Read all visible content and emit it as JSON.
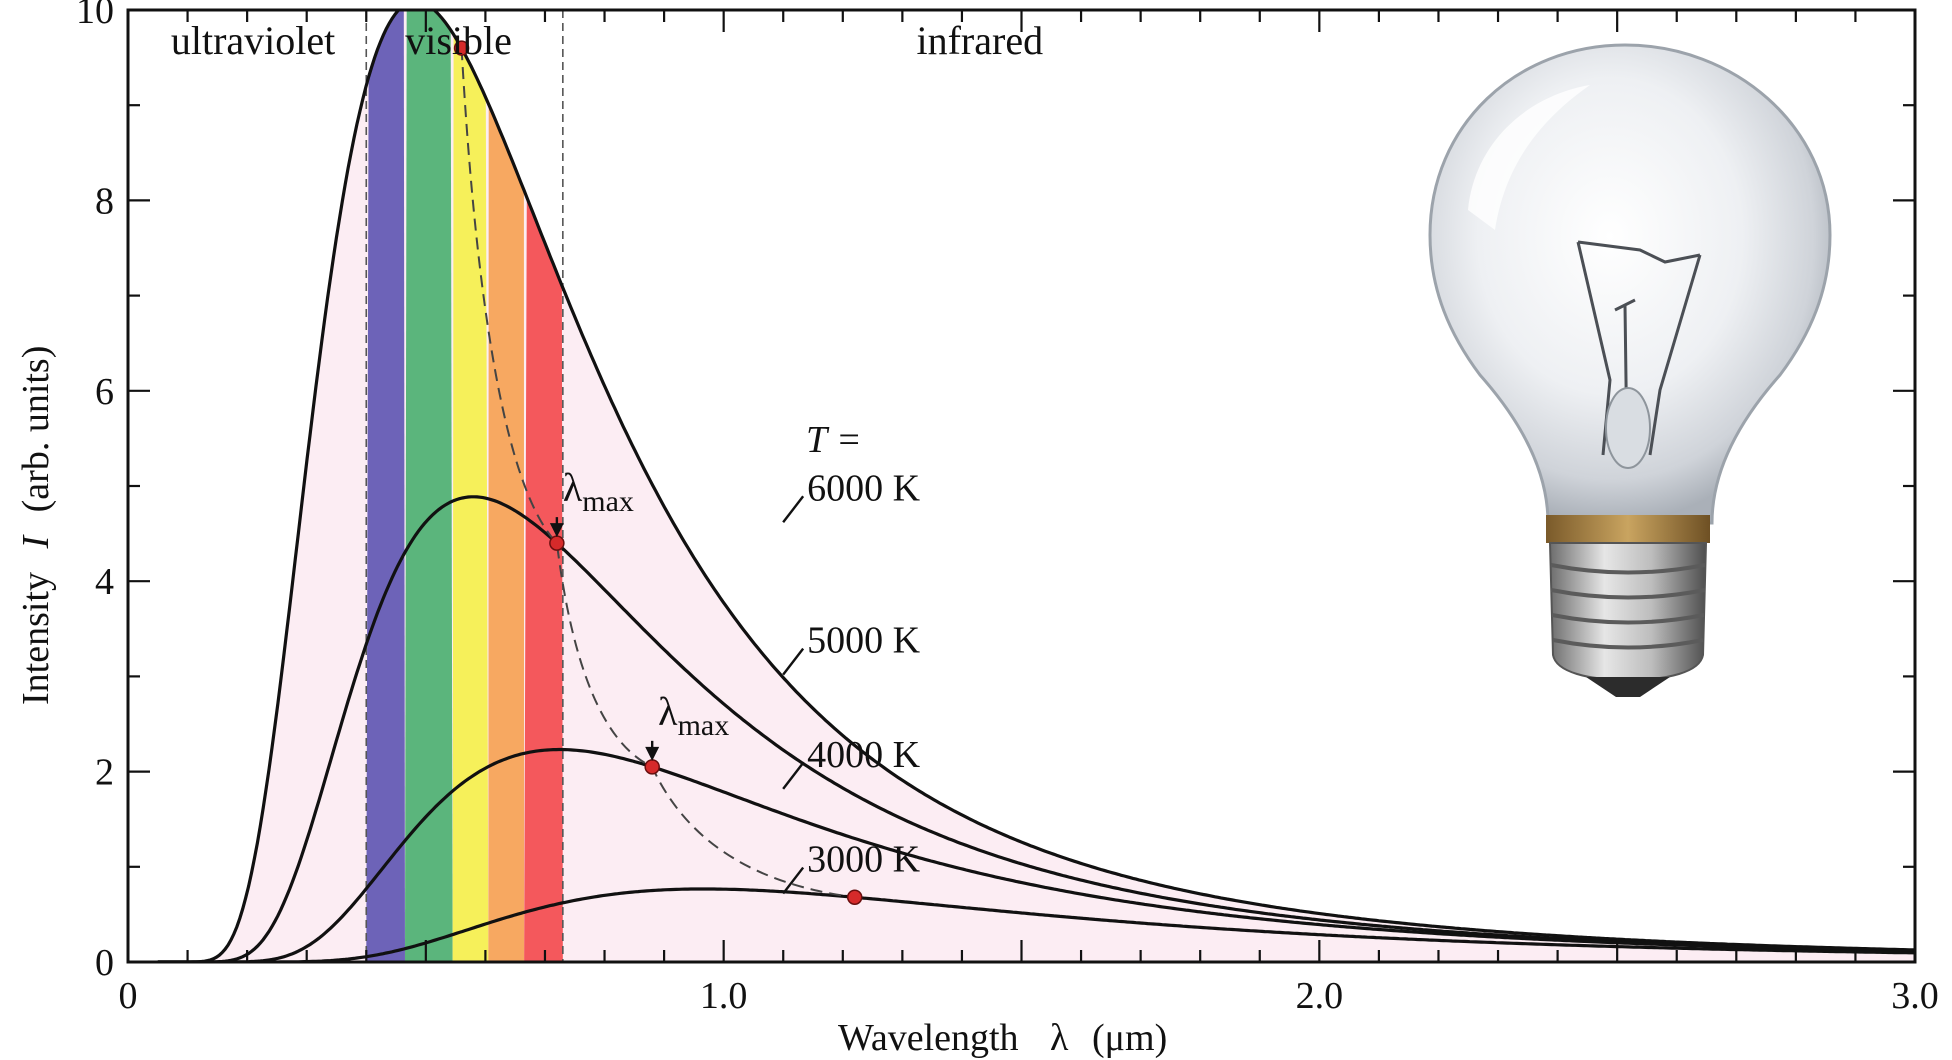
{
  "chart_data": {
    "type": "line",
    "title": "",
    "xlabel_text": "Wavelength",
    "xlabel_symbol": "λ",
    "xlabel_unit": "(μm)",
    "ylabel_text": "Intensity",
    "ylabel_symbol": "I",
    "ylabel_unit": "(arb. units)",
    "xlim": [
      0,
      3.0
    ],
    "ylim": [
      0,
      10
    ],
    "x_ticks": [
      {
        "value": 0,
        "label": "0"
      },
      {
        "value": 1.0,
        "label": "1.0"
      },
      {
        "value": 2.0,
        "label": "2.0"
      },
      {
        "value": 3.0,
        "label": "3.0"
      }
    ],
    "y_ticks": [
      {
        "value": 0,
        "label": "0"
      },
      {
        "value": 2,
        "label": "2"
      },
      {
        "value": 4,
        "label": "4"
      },
      {
        "value": 6,
        "label": "6"
      },
      {
        "value": 8,
        "label": "8"
      },
      {
        "value": 10,
        "label": "10"
      }
    ],
    "regions": [
      {
        "label": "ultraviolet",
        "from": 0,
        "to": 0.4
      },
      {
        "label": "visible",
        "from": 0.4,
        "to": 0.73
      },
      {
        "label": "infrared",
        "from": 0.73,
        "to": 3.0
      }
    ],
    "visible_bands": [
      {
        "from": 0.4,
        "to": 0.465,
        "color": "#6d63b8"
      },
      {
        "from": 0.465,
        "to": 0.545,
        "color": "#5bb57c"
      },
      {
        "from": 0.545,
        "to": 0.605,
        "color": "#f6f05a"
      },
      {
        "from": 0.605,
        "to": 0.665,
        "color": "#f7a861"
      },
      {
        "from": 0.665,
        "to": 0.73,
        "color": "#f4585c"
      }
    ],
    "fill_color": "#fcedf3",
    "temperature_prefix": "T =",
    "series": [
      {
        "name": "6000 K",
        "temperature": 6000,
        "peak_x": 0.56,
        "peak_y": 9.6,
        "label_at": [
          1.12,
          4.85
        ]
      },
      {
        "name": "5000 K",
        "temperature": 5000,
        "peak_x": 0.72,
        "peak_y": 4.4,
        "label_at": [
          1.12,
          3.25
        ]
      },
      {
        "name": "4000 K",
        "temperature": 4000,
        "peak_x": 0.88,
        "peak_y": 2.05,
        "label_at": [
          1.12,
          2.05
        ]
      },
      {
        "name": "3000 K",
        "temperature": 3000,
        "peak_x": 1.22,
        "peak_y": 0.68,
        "label_at": [
          1.12,
          0.95
        ]
      }
    ],
    "lambda_max_labels": [
      {
        "main": "λ",
        "sub": "max",
        "series": "5000 K"
      },
      {
        "main": "λ",
        "sub": "max",
        "series": "4000 K"
      }
    ],
    "peak_marker_color": "#d62a2a"
  },
  "image": {
    "name": "incandescent light bulb"
  }
}
